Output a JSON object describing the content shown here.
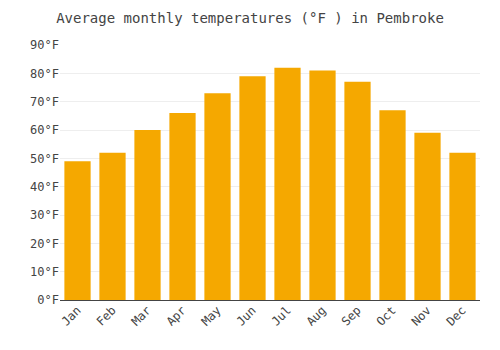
{
  "chart_data": {
    "type": "bar",
    "title": "Average monthly temperatures (°F ) in Pembroke",
    "categories": [
      "Jan",
      "Feb",
      "Mar",
      "Apr",
      "May",
      "Jun",
      "Jul",
      "Aug",
      "Sep",
      "Oct",
      "Nov",
      "Dec"
    ],
    "values": [
      49,
      52,
      60,
      66,
      73,
      79,
      82,
      81,
      77,
      67,
      59,
      52
    ],
    "color": "#F5A800",
    "ylim": [
      0,
      90
    ],
    "yticks": [
      {
        "value": 0,
        "label": "0°F"
      },
      {
        "value": 10,
        "label": "10°F"
      },
      {
        "value": 20,
        "label": "20°F"
      },
      {
        "value": 30,
        "label": "30°F"
      },
      {
        "value": 40,
        "label": "40°F"
      },
      {
        "value": 50,
        "label": "50°F"
      },
      {
        "value": 60,
        "label": "60°F"
      },
      {
        "value": 70,
        "label": "70°F"
      },
      {
        "value": 80,
        "label": "80°F"
      },
      {
        "value": 90,
        "label": "90°F"
      }
    ],
    "grid": true
  }
}
